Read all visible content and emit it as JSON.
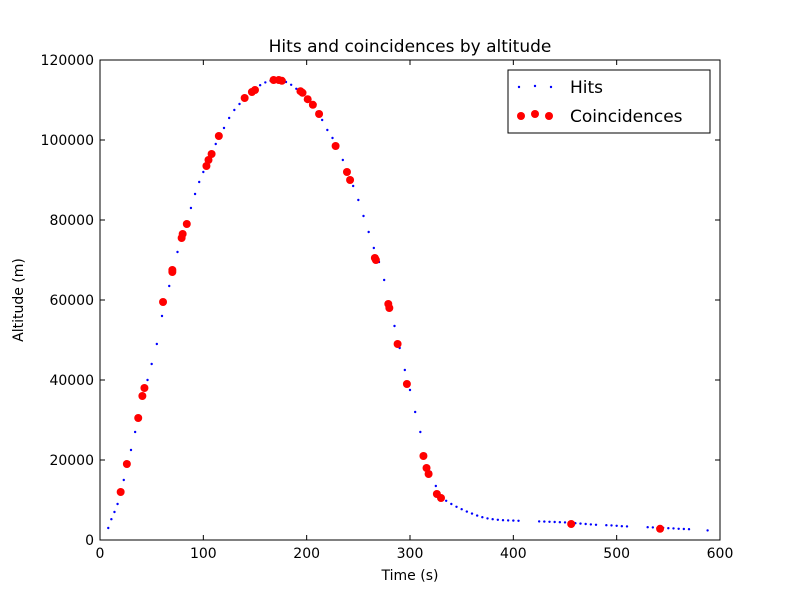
{
  "chart_data": {
    "type": "scatter",
    "title": "Hits and coincidences by altitude",
    "xlabel": "Time (s)",
    "ylabel": "Altitude (m)",
    "xlim": [
      0,
      600
    ],
    "ylim": [
      0,
      120000
    ],
    "x_ticks": [
      0,
      100,
      200,
      300,
      400,
      500,
      600
    ],
    "y_ticks": [
      0,
      20000,
      40000,
      60000,
      80000,
      100000,
      120000
    ],
    "grid": false,
    "legend_position": "top-right",
    "series": [
      {
        "name": "Hits",
        "marker": "dot",
        "color": "#0000ff",
        "points": [
          [
            8,
            3000
          ],
          [
            11,
            5200
          ],
          [
            14,
            7000
          ],
          [
            17,
            9000
          ],
          [
            20,
            12000
          ],
          [
            23,
            15000
          ],
          [
            26,
            19000
          ],
          [
            30,
            22500
          ],
          [
            34,
            27000
          ],
          [
            38,
            30500
          ],
          [
            42,
            36000
          ],
          [
            46,
            40000
          ],
          [
            50,
            44000
          ],
          [
            55,
            49000
          ],
          [
            60,
            56000
          ],
          [
            63,
            59500
          ],
          [
            67,
            63500
          ],
          [
            71,
            67500
          ],
          [
            75,
            72000
          ],
          [
            80,
            76000
          ],
          [
            84,
            79500
          ],
          [
            88,
            83000
          ],
          [
            92,
            86500
          ],
          [
            96,
            89500
          ],
          [
            100,
            92000
          ],
          [
            104,
            94500
          ],
          [
            108,
            96500
          ],
          [
            112,
            99000
          ],
          [
            116,
            101000
          ],
          [
            120,
            103000
          ],
          [
            125,
            105500
          ],
          [
            130,
            107500
          ],
          [
            135,
            109000
          ],
          [
            140,
            110500
          ],
          [
            145,
            111800
          ],
          [
            150,
            112800
          ],
          [
            155,
            113700
          ],
          [
            160,
            114400
          ],
          [
            165,
            114800
          ],
          [
            170,
            115000
          ],
          [
            175,
            114900
          ],
          [
            180,
            114500
          ],
          [
            185,
            113800
          ],
          [
            190,
            112800
          ],
          [
            195,
            112000
          ],
          [
            200,
            110500
          ],
          [
            205,
            108800
          ],
          [
            210,
            107000
          ],
          [
            215,
            105000
          ],
          [
            220,
            102500
          ],
          [
            225,
            100500
          ],
          [
            230,
            98000
          ],
          [
            235,
            95000
          ],
          [
            240,
            92000
          ],
          [
            245,
            88500
          ],
          [
            250,
            85000
          ],
          [
            255,
            81000
          ],
          [
            260,
            77000
          ],
          [
            265,
            73000
          ],
          [
            270,
            69500
          ],
          [
            275,
            65000
          ],
          [
            280,
            59500
          ],
          [
            285,
            53500
          ],
          [
            290,
            48000
          ],
          [
            295,
            42500
          ],
          [
            300,
            37500
          ],
          [
            305,
            32000
          ],
          [
            310,
            27000
          ],
          [
            315,
            21500
          ],
          [
            320,
            17000
          ],
          [
            325,
            13500
          ],
          [
            330,
            11000
          ],
          [
            335,
            9800
          ],
          [
            340,
            9000
          ],
          [
            345,
            8300
          ],
          [
            350,
            7700
          ],
          [
            355,
            7100
          ],
          [
            360,
            6600
          ],
          [
            365,
            6100
          ],
          [
            370,
            5700
          ],
          [
            375,
            5400
          ],
          [
            380,
            5200
          ],
          [
            385,
            5050
          ],
          [
            390,
            4950
          ],
          [
            395,
            4900
          ],
          [
            400,
            4850
          ],
          [
            405,
            4800
          ],
          [
            425,
            4650
          ],
          [
            430,
            4600
          ],
          [
            435,
            4550
          ],
          [
            440,
            4500
          ],
          [
            445,
            4450
          ],
          [
            450,
            4400
          ],
          [
            460,
            4200
          ],
          [
            465,
            4100
          ],
          [
            470,
            4000
          ],
          [
            475,
            3900
          ],
          [
            480,
            3800
          ],
          [
            490,
            3700
          ],
          [
            495,
            3650
          ],
          [
            500,
            3550
          ],
          [
            505,
            3450
          ],
          [
            510,
            3400
          ],
          [
            530,
            3200
          ],
          [
            535,
            3150
          ],
          [
            540,
            3100
          ],
          [
            545,
            3050
          ],
          [
            550,
            2950
          ],
          [
            555,
            2900
          ],
          [
            560,
            2800
          ],
          [
            565,
            2750
          ],
          [
            570,
            2700
          ],
          [
            588,
            2400
          ]
        ]
      },
      {
        "name": "Coincidences",
        "marker": "circle",
        "color": "#ff0000",
        "points": [
          [
            20,
            12000
          ],
          [
            26,
            19000
          ],
          [
            37,
            30500
          ],
          [
            41,
            36000
          ],
          [
            43,
            38000
          ],
          [
            61,
            59500
          ],
          [
            70,
            67500
          ],
          [
            70,
            67000
          ],
          [
            79,
            75500
          ],
          [
            80,
            76500
          ],
          [
            84,
            79000
          ],
          [
            103,
            93500
          ],
          [
            105,
            95000
          ],
          [
            108,
            96500
          ],
          [
            115,
            101000
          ],
          [
            140,
            110500
          ],
          [
            147,
            112000
          ],
          [
            150,
            112500
          ],
          [
            168,
            115000
          ],
          [
            173,
            115000
          ],
          [
            176,
            114800
          ],
          [
            194,
            112200
          ],
          [
            196,
            111800
          ],
          [
            201,
            110200
          ],
          [
            206,
            108800
          ],
          [
            212,
            106500
          ],
          [
            228,
            98500
          ],
          [
            239,
            92000
          ],
          [
            242,
            90000
          ],
          [
            266,
            70500
          ],
          [
            267,
            70000
          ],
          [
            279,
            59000
          ],
          [
            280,
            58000
          ],
          [
            288,
            49000
          ],
          [
            297,
            39000
          ],
          [
            313,
            21000
          ],
          [
            316,
            18000
          ],
          [
            318,
            16500
          ],
          [
            326,
            11500
          ],
          [
            330,
            10500
          ],
          [
            456,
            4000
          ],
          [
            542,
            2800
          ]
        ]
      }
    ]
  }
}
